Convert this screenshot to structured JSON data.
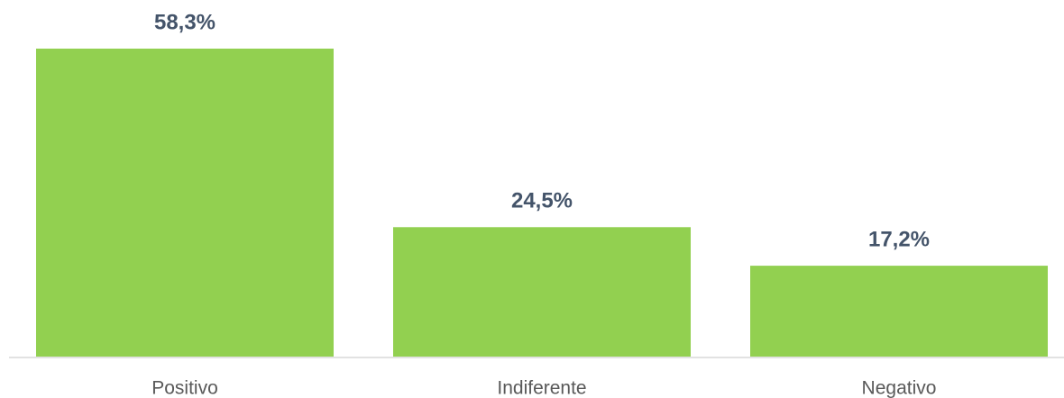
{
  "chart_data": {
    "type": "bar",
    "categories": [
      "Positivo",
      "Indiferente",
      "Negativo"
    ],
    "values": [
      58.3,
      24.5,
      17.2
    ],
    "value_labels": [
      "58,3%",
      "24,5%",
      "17,2%"
    ],
    "color": "#92d050"
  }
}
